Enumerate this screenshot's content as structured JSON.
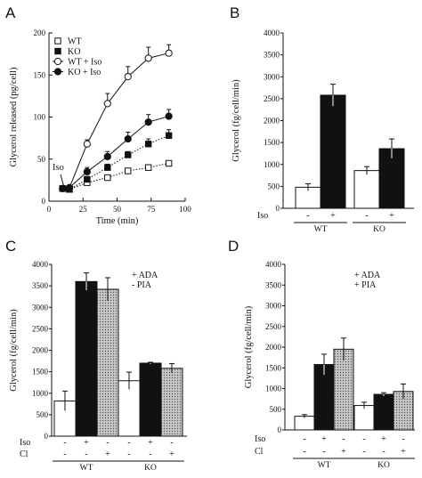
{
  "chart_data": [
    {
      "panel": "A",
      "type": "line",
      "xlabel": "Time (min)",
      "ylabel": "Glycerol released (pg/cell)",
      "xlim": [
        0,
        100
      ],
      "ylim": [
        0,
        200
      ],
      "xticks": [
        "0",
        "25",
        "50",
        "75",
        "100"
      ],
      "yticks": [
        "0",
        "50",
        "100",
        "150",
        "200"
      ],
      "legend_position": "top-left",
      "annotation": "Iso",
      "series": [
        {
          "name": "WT",
          "marker": "open-square",
          "line": "dotted",
          "x": [
            10,
            15,
            28,
            43,
            58,
            73,
            88
          ],
          "y": [
            15,
            14,
            22,
            28,
            36,
            40,
            45
          ],
          "err": [
            2,
            2,
            3,
            3,
            3,
            3,
            3
          ]
        },
        {
          "name": "KO",
          "marker": "filled-square",
          "line": "dotted",
          "x": [
            10,
            15,
            28,
            43,
            58,
            73,
            88
          ],
          "y": [
            15,
            14,
            26,
            40,
            55,
            68,
            78
          ],
          "err": [
            2,
            2,
            3,
            4,
            4,
            6,
            7
          ]
        },
        {
          "name": "WT + Iso",
          "marker": "open-circle",
          "line": "solid",
          "x": [
            10,
            15,
            28,
            43,
            58,
            73,
            88
          ],
          "y": [
            15,
            16,
            68,
            116,
            148,
            170,
            176
          ],
          "err": [
            2,
            2,
            5,
            12,
            12,
            13,
            10
          ]
        },
        {
          "name": "KO + Iso",
          "marker": "filled-circle",
          "line": "solid",
          "x": [
            10,
            15,
            28,
            43,
            58,
            73,
            88
          ],
          "y": [
            15,
            16,
            35,
            53,
            74,
            94,
            101
          ],
          "err": [
            2,
            2,
            5,
            6,
            8,
            9,
            8
          ]
        }
      ]
    },
    {
      "panel": "B",
      "type": "bar",
      "ylabel": "Glycerol (fg/cell/min)",
      "ylim": [
        0,
        4000
      ],
      "yticks": [
        "0",
        "500",
        "1000",
        "1500",
        "2000",
        "2500",
        "3000",
        "3500",
        "4000"
      ],
      "treatments": [
        {
          "label": "Iso",
          "signs": [
            "-",
            "+",
            "-",
            "+"
          ]
        }
      ],
      "groups": [
        "WT",
        "KO"
      ],
      "bars": [
        {
          "group": "WT",
          "fill": "white",
          "value": 480,
          "err": 80
        },
        {
          "group": "WT",
          "fill": "black",
          "value": 2580,
          "err": 250
        },
        {
          "group": "KO",
          "fill": "white",
          "value": 860,
          "err": 90
        },
        {
          "group": "KO",
          "fill": "black",
          "value": 1360,
          "err": 220
        }
      ]
    },
    {
      "panel": "C",
      "type": "bar",
      "ylabel": "Glycerol (fg/cell/min)",
      "ylim": [
        0,
        4000
      ],
      "yticks": [
        "0",
        "500",
        "1000",
        "1500",
        "2000",
        "2500",
        "3000",
        "3500",
        "4000"
      ],
      "notes": [
        "+ ADA",
        "- PIA"
      ],
      "treatments": [
        {
          "label": "Iso",
          "signs": [
            "-",
            "+",
            "-",
            "-",
            "+",
            "-"
          ]
        },
        {
          "label": "Cl",
          "signs": [
            "-",
            "-",
            "+",
            "-",
            "-",
            "+"
          ]
        }
      ],
      "groups": [
        "WT",
        "KO"
      ],
      "bars": [
        {
          "group": "WT",
          "fill": "white",
          "value": 820,
          "err": 230
        },
        {
          "group": "WT",
          "fill": "black",
          "value": 3600,
          "err": 200
        },
        {
          "group": "WT",
          "fill": "dotted-gray",
          "value": 3420,
          "err": 270
        },
        {
          "group": "KO",
          "fill": "white",
          "value": 1290,
          "err": 200
        },
        {
          "group": "KO",
          "fill": "black",
          "value": 1700,
          "err": 20
        },
        {
          "group": "KO",
          "fill": "dotted-gray",
          "value": 1580,
          "err": 110
        }
      ]
    },
    {
      "panel": "D",
      "type": "bar",
      "ylabel": "Glycerol (fg/cell/min)",
      "ylim": [
        0,
        4000
      ],
      "yticks": [
        "0",
        "500",
        "1000",
        "1500",
        "2000",
        "2500",
        "3000",
        "3500",
        "4000"
      ],
      "notes": [
        "+ ADA",
        "+ PIA"
      ],
      "treatments": [
        {
          "label": "Iso",
          "signs": [
            "-",
            "+",
            "-",
            "-",
            "+",
            "-"
          ]
        },
        {
          "label": "Cl",
          "signs": [
            "-",
            "-",
            "+",
            "-",
            "-",
            "+"
          ]
        }
      ],
      "groups": [
        "WT",
        "KO"
      ],
      "bars": [
        {
          "group": "WT",
          "fill": "white",
          "value": 330,
          "err": 40
        },
        {
          "group": "WT",
          "fill": "black",
          "value": 1580,
          "err": 250
        },
        {
          "group": "WT",
          "fill": "dotted-gray",
          "value": 1950,
          "err": 270
        },
        {
          "group": "KO",
          "fill": "white",
          "value": 590,
          "err": 80
        },
        {
          "group": "KO",
          "fill": "black",
          "value": 860,
          "err": 40
        },
        {
          "group": "KO",
          "fill": "dotted-gray",
          "value": 930,
          "err": 180
        }
      ]
    }
  ]
}
